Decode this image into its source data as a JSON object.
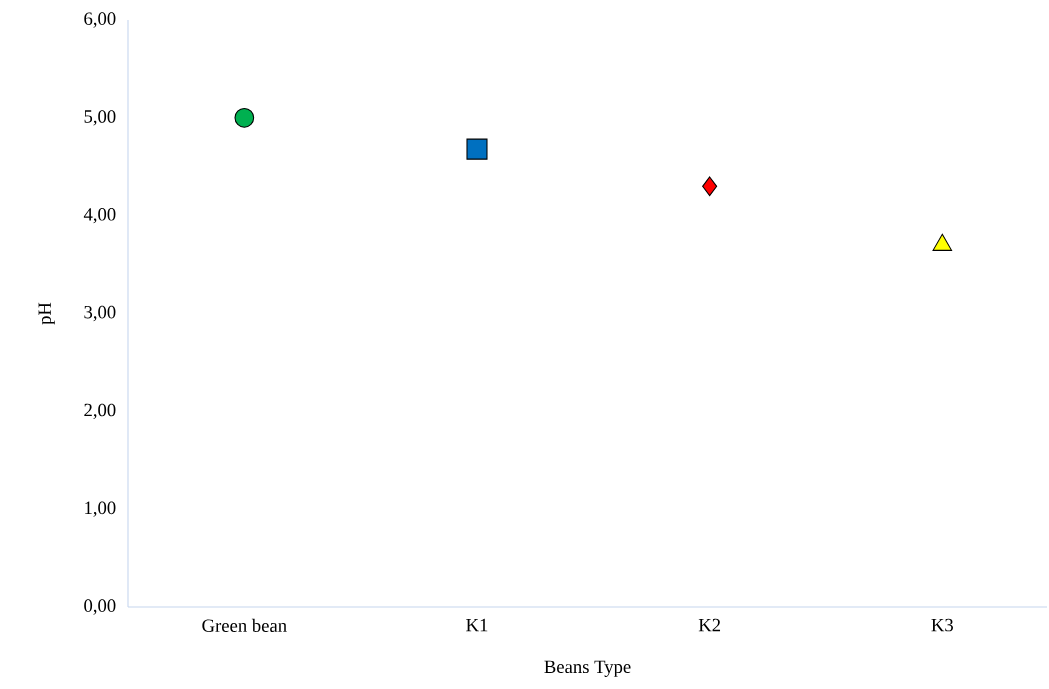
{
  "chart_data": {
    "type": "scatter",
    "xlabel": "Beans Type",
    "ylabel": "pH",
    "categories": [
      "Green bean",
      "K1",
      "K2",
      "K3"
    ],
    "series": [
      {
        "color": "#00b050",
        "marker": "circle",
        "values": [
          5.0,
          null,
          null,
          null
        ]
      },
      {
        "color": "#0070c0",
        "marker": "square",
        "values": [
          null,
          4.68,
          null,
          null
        ]
      },
      {
        "color": "#ff0000",
        "marker": "diamond",
        "values": [
          null,
          null,
          4.3,
          null
        ]
      },
      {
        "color": "#ffff00",
        "marker": "triangle",
        "values": [
          null,
          null,
          null,
          3.7
        ]
      }
    ],
    "ylim": [
      0,
      6
    ],
    "yticks": [
      {
        "value": 0,
        "label": "0,00"
      },
      {
        "value": 1,
        "label": "1,00"
      },
      {
        "value": 2,
        "label": "2,00"
      },
      {
        "value": 3,
        "label": "3,00"
      },
      {
        "value": 4,
        "label": "4,00"
      },
      {
        "value": 5,
        "label": "5,00"
      },
      {
        "value": 6,
        "label": "6,00"
      }
    ]
  }
}
